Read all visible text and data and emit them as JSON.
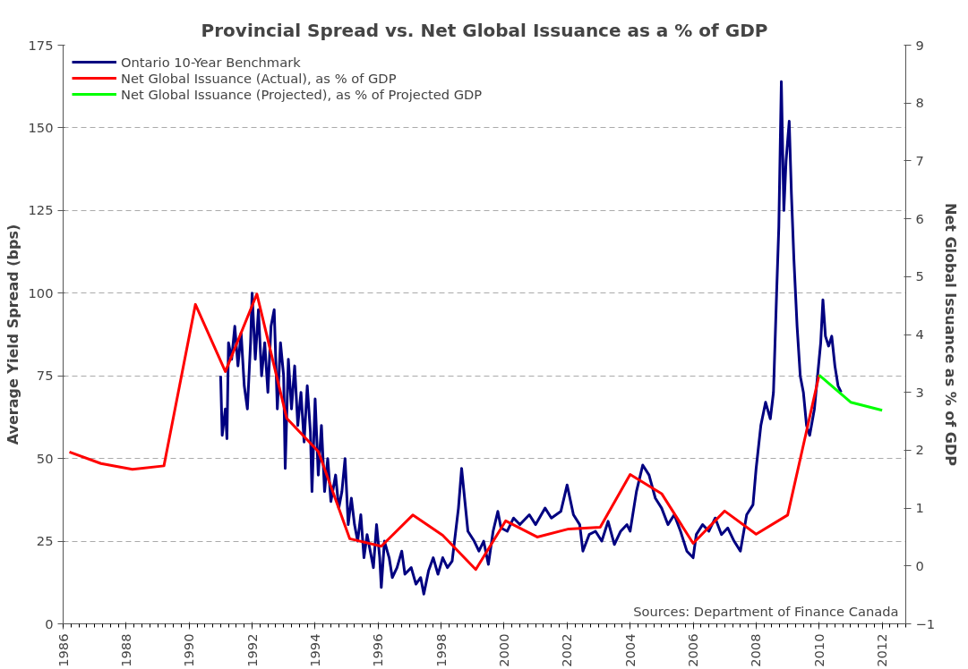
{
  "chart_data": {
    "type": "line",
    "title": "Provincial Spread vs. Net Global Issuance as a % of GDP",
    "ylabel": "Average Yield Spread (bps)",
    "y2label": "Net Global Issuance as % of GDP",
    "annotations": [
      {
        "text": "Sources: Department of Finance Canada"
      }
    ],
    "xlim": [
      1986,
      2012.75
    ],
    "xticks": [
      1986,
      1988,
      1990,
      1992,
      1994,
      1996,
      1998,
      2000,
      2002,
      2004,
      2006,
      2008,
      2010,
      2012
    ],
    "ylim": [
      0,
      175
    ],
    "yticks": [
      0,
      25,
      50,
      75,
      100,
      125,
      150,
      175
    ],
    "y2lim": [
      -1,
      9
    ],
    "y2ticks": [
      -1,
      0,
      1,
      2,
      3,
      4,
      5,
      6,
      7,
      8,
      9
    ],
    "grid": "y",
    "legend": "top left",
    "marker": "none",
    "line_style": "solid",
    "series": [
      {
        "name": "Ontario 10-Year Benchmark",
        "color": "#000080",
        "x": [
          1991.0,
          1991.05,
          1991.15,
          1991.2,
          1991.25,
          1991.35,
          1991.45,
          1991.55,
          1991.65,
          1991.75,
          1991.85,
          1991.95,
          1992.0,
          1992.1,
          1992.2,
          1992.3,
          1992.4,
          1992.5,
          1992.6,
          1992.7,
          1992.8,
          1992.9,
          1993.0,
          1993.05,
          1993.15,
          1993.25,
          1993.35,
          1993.45,
          1993.55,
          1993.65,
          1993.75,
          1993.85,
          1993.9,
          1994.0,
          1994.1,
          1994.2,
          1994.3,
          1994.4,
          1994.5,
          1994.65,
          1994.75,
          1994.85,
          1994.95,
          1995.05,
          1995.15,
          1995.25,
          1995.35,
          1995.45,
          1995.55,
          1995.65,
          1995.75,
          1995.85,
          1995.95,
          1996.05,
          1996.1,
          1996.2,
          1996.35,
          1996.45,
          1996.6,
          1996.75,
          1996.85,
          1997.05,
          1997.2,
          1997.35,
          1997.45,
          1997.6,
          1997.75,
          1997.9,
          1998.05,
          1998.2,
          1998.35,
          1998.55,
          1998.65,
          1998.85,
          1999.05,
          1999.2,
          1999.35,
          1999.5,
          1999.65,
          1999.8,
          1999.9,
          2000.1,
          2000.3,
          2000.5,
          2000.8,
          2001.0,
          2001.3,
          2001.5,
          2001.8,
          2002.0,
          2002.2,
          2002.4,
          2002.5,
          2002.7,
          2002.9,
          2003.1,
          2003.3,
          2003.5,
          2003.7,
          2003.9,
          2004.0,
          2004.2,
          2004.4,
          2004.6,
          2004.8,
          2005.0,
          2005.2,
          2005.4,
          2005.6,
          2005.8,
          2006.0,
          2006.1,
          2006.3,
          2006.5,
          2006.7,
          2006.9,
          2007.1,
          2007.3,
          2007.5,
          2007.7,
          2007.9,
          2008.0,
          2008.15,
          2008.3,
          2008.45,
          2008.55,
          2008.65,
          2008.72,
          2008.8,
          2008.88,
          2008.95,
          2009.05,
          2009.12,
          2009.2,
          2009.3,
          2009.4,
          2009.5,
          2009.6,
          2009.7,
          2009.85,
          2009.95,
          2010.05,
          2010.12,
          2010.2,
          2010.3,
          2010.4,
          2010.5,
          2010.6,
          2010.7
        ],
        "values": [
          75,
          57,
          65,
          56,
          85,
          80,
          90,
          78,
          88,
          72,
          65,
          85,
          100,
          80,
          95,
          75,
          85,
          70,
          90,
          95,
          65,
          85,
          75,
          47,
          80,
          65,
          78,
          60,
          70,
          55,
          72,
          58,
          40,
          68,
          45,
          60,
          40,
          50,
          37,
          45,
          35,
          40,
          50,
          30,
          38,
          30,
          25,
          33,
          20,
          27,
          22,
          17,
          30,
          20,
          11,
          25,
          20,
          14,
          17,
          22,
          15,
          17,
          12,
          14,
          9,
          16,
          20,
          15,
          20,
          17,
          19,
          35,
          47,
          28,
          25,
          22,
          25,
          18,
          28,
          34,
          29,
          28,
          32,
          30,
          33,
          30,
          35,
          32,
          34,
          42,
          33,
          30,
          22,
          27,
          28,
          25,
          31,
          24,
          28,
          30,
          28,
          40,
          48,
          45,
          38,
          35,
          30,
          33,
          28,
          22,
          20,
          27,
          30,
          28,
          32,
          27,
          29,
          25,
          22,
          33,
          36,
          47,
          60,
          67,
          62,
          70,
          100,
          120,
          164,
          125,
          140,
          152,
          130,
          110,
          90,
          75,
          70,
          60,
          57,
          65,
          75,
          85,
          98,
          87,
          84,
          87,
          78,
          72,
          70
        ]
      },
      {
        "name": "Net Global Issuance (Actual), as % of GDP",
        "color": "#ff0000",
        "axis": "y2",
        "x": [
          1986.2,
          1987.2,
          1988.2,
          1989.2,
          1990.2,
          1991.15,
          1992.15,
          1993.1,
          1994.1,
          1995.1,
          1996.1,
          1997.1,
          1998.05,
          1999.1,
          2000.05,
          2001.05,
          2002.05,
          2003.05,
          2004.0,
          2005.0,
          2006.0,
          2007.0,
          2008.0,
          2009.0,
          2010.0
        ],
        "values": [
          1.97,
          1.77,
          1.67,
          1.73,
          4.52,
          3.36,
          4.7,
          2.55,
          1.98,
          0.47,
          0.34,
          0.88,
          0.53,
          -0.06,
          0.78,
          0.5,
          0.64,
          0.67,
          1.58,
          1.25,
          0.39,
          0.95,
          0.55,
          0.88,
          3.3
        ]
      },
      {
        "name": "Net Global Issuance (Projected), as % of Projected GDP",
        "color": "#00ff00",
        "axis": "y2",
        "x": [
          2010.0,
          2011.0,
          2012.0
        ],
        "values": [
          3.3,
          2.83,
          2.69
        ]
      }
    ]
  }
}
